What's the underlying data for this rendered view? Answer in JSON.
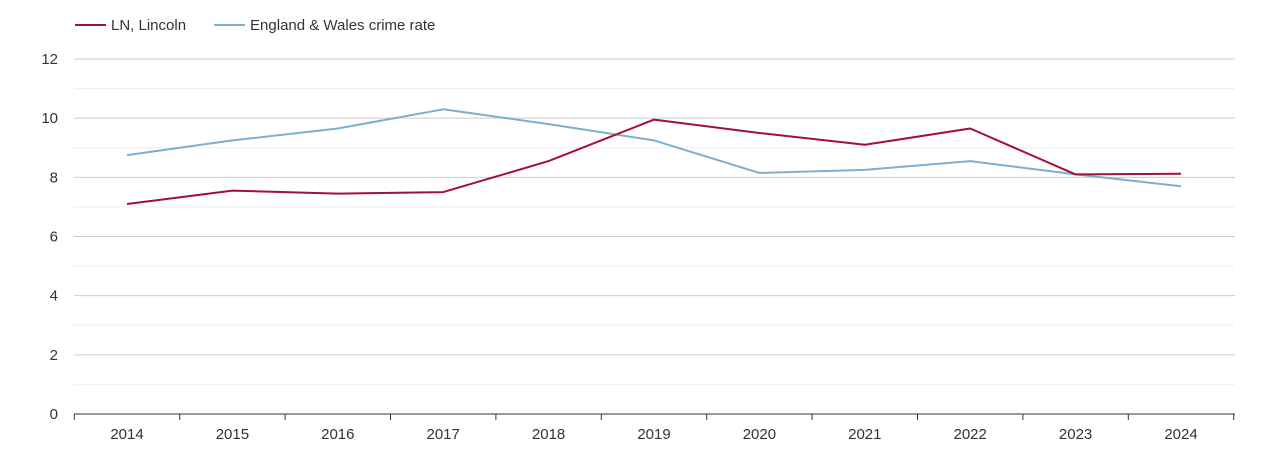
{
  "chart_data": {
    "type": "line",
    "title": "",
    "xlabel": "",
    "ylabel": "",
    "categories": [
      "2014",
      "2015",
      "2016",
      "2017",
      "2018",
      "2019",
      "2020",
      "2021",
      "2022",
      "2023",
      "2024"
    ],
    "ylim": [
      0,
      12
    ],
    "yticks": [
      0,
      2,
      4,
      6,
      8,
      10,
      12
    ],
    "grid": true,
    "legend_position": "top-left",
    "series": [
      {
        "name": "LN, Lincoln",
        "color": "#a50f32",
        "values": [
          7.1,
          7.55,
          7.45,
          7.5,
          8.55,
          9.95,
          9.5,
          9.1,
          9.65,
          8.1,
          8.12
        ]
      },
      {
        "name": "England & Wales crime rate",
        "color": "#7bafd0",
        "values": [
          8.75,
          9.25,
          9.65,
          10.3,
          9.8,
          9.25,
          8.15,
          8.25,
          8.55,
          8.1,
          7.7
        ]
      }
    ]
  }
}
